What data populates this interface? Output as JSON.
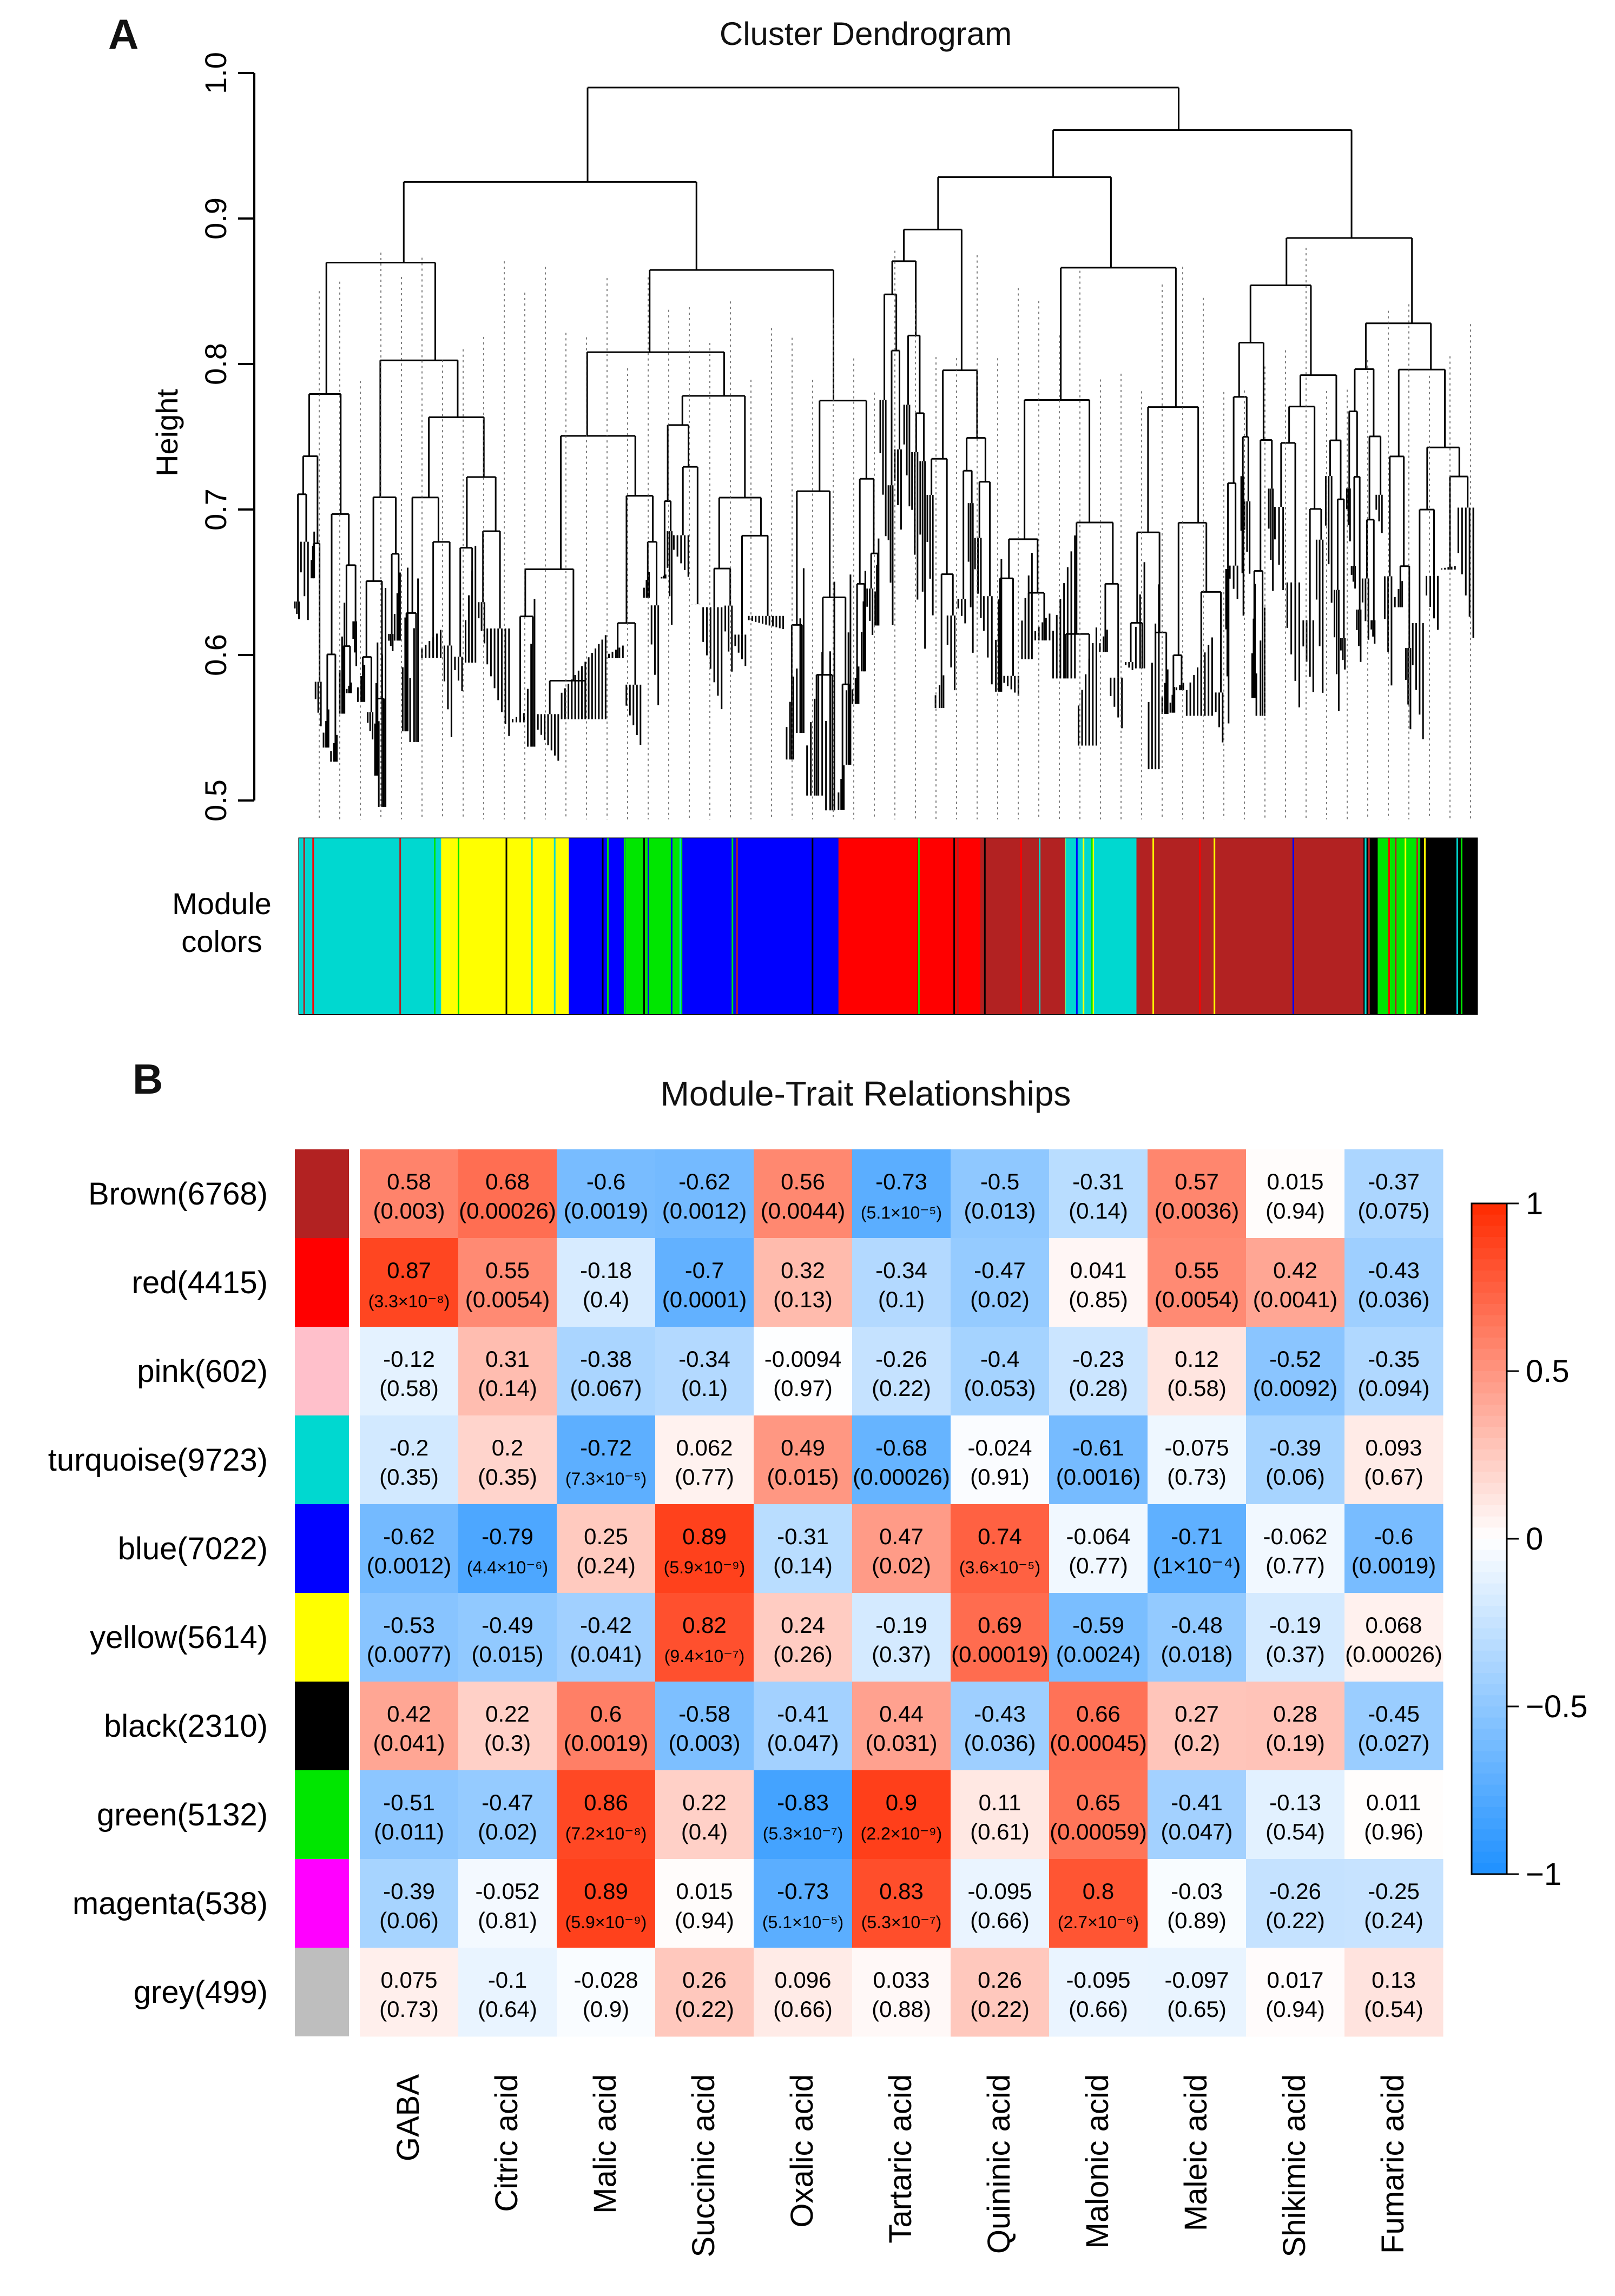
{
  "panel_a": {
    "letter": "A",
    "title": "Cluster Dendrogram",
    "ylabel": "Height",
    "ticks": [
      "0.5",
      "0.6",
      "0.7",
      "0.8",
      "0.9",
      "1.0"
    ],
    "module_label_line1": "Module",
    "module_label_line2": "colors"
  },
  "panel_b": {
    "letter": "B",
    "title": "Module-Trait Relationships"
  },
  "colors": {
    "turquoise": "#00d8d0",
    "yellow": "#ffff00",
    "blue": "#0000ff",
    "green": "#00e600",
    "red": "#ff0000",
    "brown": "#b22222",
    "black": "#000000",
    "grey": "#bebebe",
    "pink": "#ffc0cb",
    "magenta": "#ff00ff",
    "strong_neg": "#1e90ff",
    "zero": "#ffffff",
    "strong_pos": "#ff2a00"
  },
  "chart_data": [
    {
      "type": "dendrogram",
      "title": "Cluster Dendrogram",
      "ylabel": "Height",
      "ylim": [
        0.5,
        1.0
      ],
      "module_colors_order": [
        "turquoise",
        "yellow",
        "blue",
        "green",
        "blue",
        "red",
        "brown",
        "turquoise",
        "brown",
        "black",
        "green",
        "black"
      ],
      "module_colors_weights": [
        10,
        9,
        4,
        4,
        11,
        10,
        6,
        5,
        16,
        1,
        3,
        4
      ]
    },
    {
      "type": "heatmap",
      "title": "Module-Trait Relationships",
      "rows": [
        "Brown(6768)",
        "red(4415)",
        "pink(602)",
        "turquoise(9723)",
        "blue(7022)",
        "yellow(5614)",
        "black(2310)",
        "green(5132)",
        "magenta(538)",
        "grey(499)"
      ],
      "row_colors": [
        "brown",
        "red",
        "pink",
        "turquoise",
        "blue",
        "yellow",
        "black",
        "green",
        "magenta",
        "grey"
      ],
      "columns": [
        "GABA",
        "Citric acid",
        "Malic acid",
        "Succinic acid",
        "Oxalic acid",
        "Tartaric acid",
        "Quininic acid",
        "Malonic acid",
        "Maleic acid",
        "Shikimic acid",
        "Fumaric acid"
      ],
      "values": [
        [
          0.58,
          0.68,
          -0.6,
          -0.62,
          0.56,
          -0.73,
          -0.5,
          -0.31,
          0.57,
          0.015,
          -0.37
        ],
        [
          0.87,
          0.55,
          -0.18,
          -0.7,
          0.32,
          -0.34,
          -0.47,
          0.041,
          0.55,
          0.42,
          -0.43
        ],
        [
          -0.12,
          0.31,
          -0.38,
          -0.34,
          -0.0094,
          -0.26,
          -0.4,
          -0.23,
          0.12,
          -0.52,
          -0.35
        ],
        [
          -0.2,
          0.2,
          -0.72,
          0.062,
          0.49,
          -0.68,
          -0.024,
          -0.61,
          -0.075,
          -0.39,
          0.093
        ],
        [
          -0.62,
          -0.79,
          0.25,
          0.89,
          -0.31,
          0.47,
          0.74,
          -0.064,
          -0.71,
          -0.062,
          -0.6
        ],
        [
          -0.53,
          -0.49,
          -0.42,
          0.82,
          0.24,
          -0.19,
          0.69,
          -0.59,
          -0.48,
          -0.19,
          0.068
        ],
        [
          0.42,
          0.22,
          0.6,
          -0.58,
          -0.41,
          0.44,
          -0.43,
          0.66,
          0.27,
          0.28,
          -0.45
        ],
        [
          -0.51,
          -0.47,
          0.86,
          0.22,
          -0.83,
          0.9,
          0.11,
          0.65,
          -0.41,
          -0.13,
          0.011
        ],
        [
          -0.39,
          -0.052,
          0.89,
          0.015,
          -0.73,
          0.83,
          -0.095,
          0.8,
          -0.03,
          -0.26,
          -0.25
        ],
        [
          0.075,
          -0.1,
          -0.028,
          0.26,
          0.096,
          0.033,
          0.26,
          -0.095,
          -0.097,
          0.017,
          0.13
        ]
      ],
      "value_labels": [
        [
          "0.58",
          "0.68",
          "-0.6",
          "-0.62",
          "0.56",
          "-0.73",
          "-0.5",
          "-0.31",
          "0.57",
          "0.015",
          "-0.37"
        ],
        [
          "0.87",
          "0.55",
          "-0.18",
          "-0.7",
          "0.32",
          "-0.34",
          "-0.47",
          "0.041",
          "0.55",
          "0.42",
          "-0.43"
        ],
        [
          "-0.12",
          "0.31",
          "-0.38",
          "-0.34",
          "-0.0094",
          "-0.26",
          "-0.4",
          "-0.23",
          "0.12",
          "-0.52",
          "-0.35"
        ],
        [
          "-0.2",
          "0.2",
          "-0.72",
          "0.062",
          "0.49",
          "-0.68",
          "-0.024",
          "-0.61",
          "-0.075",
          "-0.39",
          "0.093"
        ],
        [
          "-0.62",
          "-0.79",
          "0.25",
          "0.89",
          "-0.31",
          "0.47",
          "0.74",
          "-0.064",
          "-0.71",
          "-0.062",
          "-0.6"
        ],
        [
          "-0.53",
          "-0.49",
          "-0.42",
          "0.82",
          "0.24",
          "-0.19",
          "0.69",
          "-0.59",
          "-0.48",
          "-0.19",
          "0.068"
        ],
        [
          "0.42",
          "0.22",
          "0.6",
          "-0.58",
          "-0.41",
          "0.44",
          "-0.43",
          "0.66",
          "0.27",
          "0.28",
          "-0.45"
        ],
        [
          "-0.51",
          "-0.47",
          "0.86",
          "0.22",
          "-0.83",
          "0.9",
          "0.11",
          "0.65",
          "-0.41",
          "-0.13",
          "0.011"
        ],
        [
          "-0.39",
          "-0.052",
          "0.89",
          "0.015",
          "-0.73",
          "0.83",
          "-0.095",
          "0.8",
          "-0.03",
          "-0.26",
          "-0.25"
        ],
        [
          "0.075",
          "-0.1",
          "-0.028",
          "0.26",
          "0.096",
          "0.033",
          "0.26",
          "-0.095",
          "-0.097",
          "0.017",
          "0.13"
        ]
      ],
      "pvalues": [
        [
          "(0.003)",
          "(0.00026)",
          "(0.0019)",
          "(0.0012)",
          "(0.0044)",
          "(5.1×10⁻⁵)",
          "(0.013)",
          "(0.14)",
          "(0.0036)",
          "(0.94)",
          "(0.075)"
        ],
        [
          "(3.3×10⁻⁸)",
          "(0.0054)",
          "(0.4)",
          "(0.0001)",
          "(0.13)",
          "(0.1)",
          "(0.02)",
          "(0.85)",
          "(0.0054)",
          "(0.0041)",
          "(0.036)"
        ],
        [
          "(0.58)",
          "(0.14)",
          "(0.067)",
          "(0.1)",
          "(0.97)",
          "(0.22)",
          "(0.053)",
          "(0.28)",
          "(0.58)",
          "(0.0092)",
          "(0.094)"
        ],
        [
          "(0.35)",
          "(0.35)",
          "(7.3×10⁻⁵)",
          "(0.77)",
          "(0.015)",
          "(0.00026)",
          "(0.91)",
          "(0.0016)",
          "(0.73)",
          "(0.06)",
          "(0.67)"
        ],
        [
          "(0.0012)",
          "(4.4×10⁻⁶)",
          "(0.24)",
          "(5.9×10⁻⁹)",
          "(0.14)",
          "(0.02)",
          "(3.6×10⁻⁵)",
          "(0.77)",
          "(1×10⁻⁴)",
          "(0.77)",
          "(0.0019)"
        ],
        [
          "(0.0077)",
          "(0.015)",
          "(0.041)",
          "(9.4×10⁻⁷)",
          "(0.26)",
          "(0.37)",
          "(0.00019)",
          "(0.0024)",
          "(0.018)",
          "(0.37)",
          "(0.00026)"
        ],
        [
          "(0.041)",
          "(0.3)",
          "(0.0019)",
          "(0.003)",
          "(0.047)",
          "(0.031)",
          "(0.036)",
          "(0.00045)",
          "(0.2)",
          "(0.19)",
          "(0.027)"
        ],
        [
          "(0.011)",
          "(0.02)",
          "(7.2×10⁻⁸)",
          "(0.4)",
          "(5.3×10⁻⁷)",
          "(2.2×10⁻⁹)",
          "(0.61)",
          "(0.00059)",
          "(0.047)",
          "(0.54)",
          "(0.96)"
        ],
        [
          "(0.06)",
          "(0.81)",
          "(5.9×10⁻⁹)",
          "(0.94)",
          "(5.1×10⁻⁵)",
          "(5.3×10⁻⁷)",
          "(0.66)",
          "(2.7×10⁻⁶)",
          "(0.89)",
          "(0.22)",
          "(0.24)"
        ],
        [
          "(0.73)",
          "(0.64)",
          "(0.9)",
          "(0.22)",
          "(0.66)",
          "(0.88)",
          "(0.22)",
          "(0.66)",
          "(0.65)",
          "(0.94)",
          "(0.54)"
        ]
      ],
      "colorbar_ticks": [
        1,
        0.5,
        0,
        -0.5,
        -1
      ],
      "colorbar_tick_labels": [
        "1",
        "0.5",
        "0",
        "−0.5",
        "−1"
      ],
      "zlim": [
        -1,
        1
      ]
    }
  ]
}
